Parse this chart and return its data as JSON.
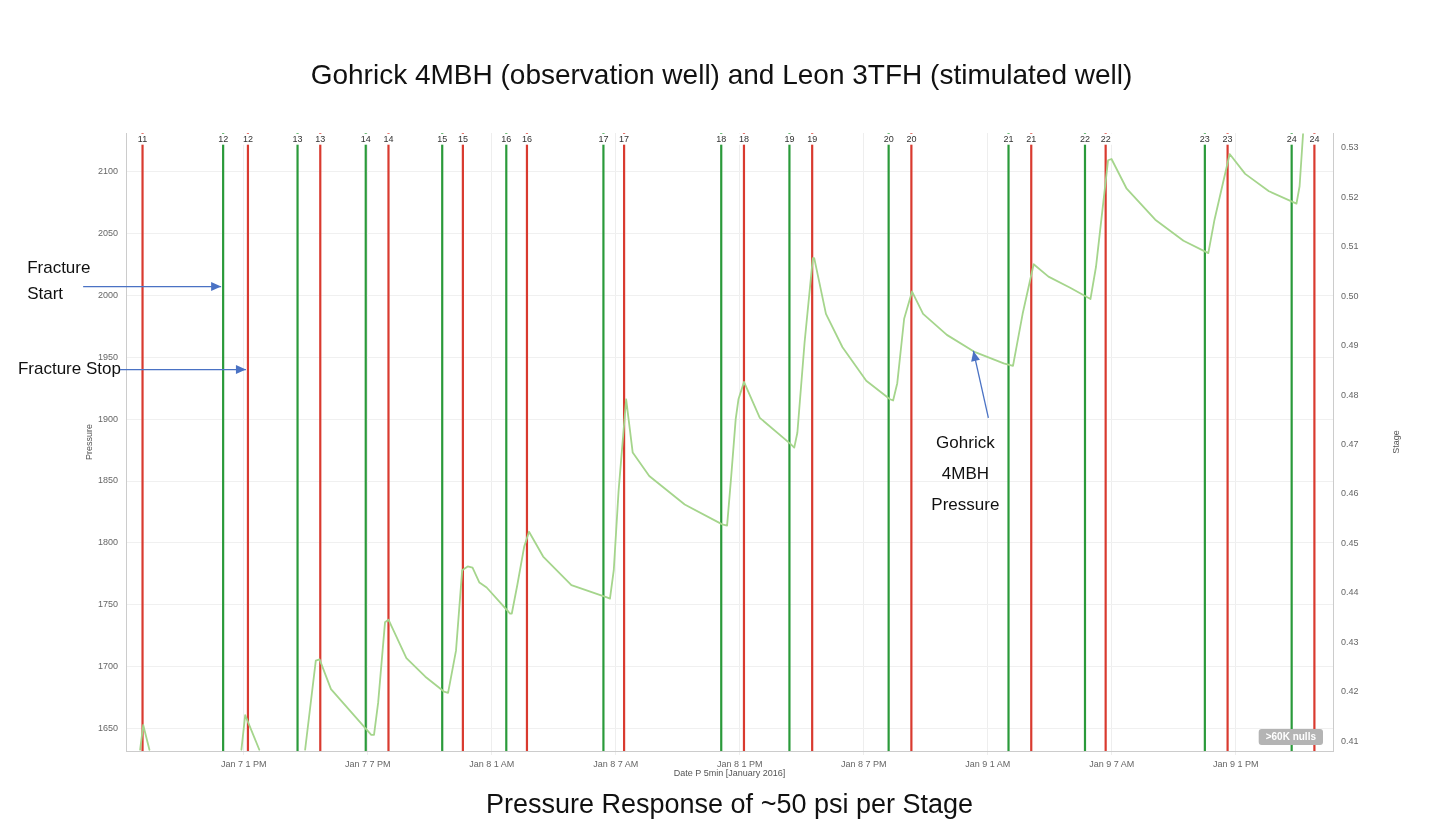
{
  "chart_data": {
    "type": "line",
    "title": "Gohrick 4MBH (observation well) and Leon 3TFH (stimulated well)",
    "xlabel": "Date P 5min [January 2016]",
    "ylabel": "Pressure",
    "y2label": "Stage",
    "xlim": [
      "2016-01-07T07:18",
      "2016-01-09T17:42"
    ],
    "xticks": [
      {
        "value": "2016-01-07T13:00",
        "label": "Jan 7 1 PM"
      },
      {
        "value": "2016-01-07T19:00",
        "label": "Jan 7 7 PM"
      },
      {
        "value": "2016-01-08T01:00",
        "label": "Jan 8 1 AM"
      },
      {
        "value": "2016-01-08T07:00",
        "label": "Jan 8 7 AM"
      },
      {
        "value": "2016-01-08T13:00",
        "label": "Jan 8 1 PM"
      },
      {
        "value": "2016-01-08T19:00",
        "label": "Jan 8 7 PM"
      },
      {
        "value": "2016-01-09T01:00",
        "label": "Jan 9 1 AM"
      },
      {
        "value": "2016-01-09T07:00",
        "label": "Jan 9 7 AM"
      },
      {
        "value": "2016-01-09T13:00",
        "label": "Jan 9 1 PM"
      }
    ],
    "ylim": [
      1632,
      2131
    ],
    "yticks": [
      1650,
      1700,
      1750,
      1800,
      1850,
      1900,
      1950,
      2000,
      2050,
      2100
    ],
    "y2lim": [
      0.408,
      0.533
    ],
    "y2ticks": [
      0.41,
      0.42,
      0.43,
      0.44,
      0.45,
      0.46,
      0.47,
      0.48,
      0.49,
      {
        "value": 0.5,
        "label": "0.50"
      },
      0.51,
      0.52,
      0.53
    ],
    "grid": true,
    "marker": "none",
    "line_style": "solid",
    "series": [
      {
        "color": "#a5d58c",
        "x": [
          "2016-01-07T07:59",
          "2016-01-07T08:08",
          "2016-01-07T08:26",
          "2016-01-07T08:36",
          "2016-01-07T12:53",
          "2016-01-07T13:04",
          "2016-01-07T13:45",
          "2016-01-07T14:30",
          "2016-01-07T15:58",
          "2016-01-07T16:29",
          "2016-01-07T16:40",
          "2016-01-07T17:13",
          "2016-01-07T19:10",
          "2016-01-07T19:18",
          "2016-01-07T19:30",
          "2016-01-07T19:50",
          "2016-01-07T20:00",
          "2016-01-07T20:52",
          "2016-01-07T21:47",
          "2016-01-07T22:41",
          "2016-01-07T22:53",
          "2016-01-07T23:16",
          "2016-01-07T23:34",
          "2016-01-07T23:50",
          "2016-01-08T00:04",
          "2016-01-08T00:24",
          "2016-01-08T00:45",
          "2016-01-08T01:53",
          "2016-01-08T01:58",
          "2016-01-08T02:14",
          "2016-01-08T02:34",
          "2016-01-08T02:48",
          "2016-01-08T03:29",
          "2016-01-08T04:51",
          "2016-01-08T06:34",
          "2016-01-08T06:43",
          "2016-01-08T06:54",
          "2016-01-08T07:08",
          "2016-01-08T07:30",
          "2016-01-08T07:49",
          "2016-01-08T08:37",
          "2016-01-08T10:20",
          "2016-01-08T12:09",
          "2016-01-08T12:23",
          "2016-01-08T12:35",
          "2016-01-08T12:48",
          "2016-01-08T12:56",
          "2016-01-08T13:12",
          "2016-01-08T13:58",
          "2016-01-08T15:27",
          "2016-01-08T15:38",
          "2016-01-08T15:47",
          "2016-01-08T16:08",
          "2016-01-08T16:32",
          "2016-01-08T16:36",
          "2016-01-08T17:10",
          "2016-01-08T17:58",
          "2016-01-08T19:07",
          "2016-01-08T20:16",
          "2016-01-08T20:25",
          "2016-01-08T20:37",
          "2016-01-08T20:57",
          "2016-01-08T21:20",
          "2016-01-08T21:52",
          "2016-01-08T23:01",
          "2016-01-09T00:23",
          "2016-01-09T01:46",
          "2016-01-09T02:13",
          "2016-01-09T02:41",
          "2016-01-09T03:13",
          "2016-01-09T03:56",
          "2016-01-09T04:59",
          "2016-01-09T05:58",
          "2016-01-09T06:14",
          "2016-01-09T06:49",
          "2016-01-09T06:59",
          "2016-01-09T07:43",
          "2016-01-09T09:06",
          "2016-01-09T10:28",
          "2016-01-09T11:40",
          "2016-01-09T11:58",
          "2016-01-09T12:42",
          "2016-01-09T13:27",
          "2016-01-09T14:36",
          "2016-01-09T15:56",
          "2016-01-09T16:05",
          "2016-01-09T16:15"
        ],
        "values": [
          1633,
          1653,
          1633,
          null,
          1633,
          1661,
          1633,
          null,
          1633,
          1705,
          1706,
          1682,
          1645,
          1645,
          1671,
          1736,
          1738,
          1707,
          1692,
          1680,
          1679,
          1713,
          1778,
          1781,
          1780,
          1768,
          1764,
          1743,
          1743,
          1766,
          1797,
          1809,
          1789,
          1766,
          1756,
          1755,
          1778,
          1842,
          1916,
          1873,
          1854,
          1831,
          1815,
          1814,
          1854,
          1900,
          1916,
          1930,
          1901,
          1880,
          1877,
          1889,
          1962,
          2030,
          2030,
          1985,
          1958,
          1931,
          1916,
          1915,
          1929,
          1981,
          2003,
          1985,
          1968,
          1954,
          1945,
          1943,
          1985,
          2025,
          2015,
          2006,
          1997,
          2023,
          2109,
          2110,
          2086,
          2061,
          2044,
          2034,
          2061,
          2114,
          2098,
          2084,
          2074,
          2088,
          2130
        ]
      }
    ],
    "ref_lines": [
      {
        "axis": "x",
        "value": "2016-01-07T08:06",
        "color": "#d93a2f"
      },
      {
        "axis": "x",
        "value": "2016-01-07T12:00",
        "color": "#2a9a3a"
      },
      {
        "axis": "x",
        "value": "2016-01-07T13:12",
        "color": "#d93a2f"
      },
      {
        "axis": "x",
        "value": "2016-01-07T15:36",
        "color": "#2a9a3a"
      },
      {
        "axis": "x",
        "value": "2016-01-07T16:42",
        "color": "#d93a2f"
      },
      {
        "axis": "x",
        "value": "2016-01-07T18:54",
        "color": "#2a9a3a"
      },
      {
        "axis": "x",
        "value": "2016-01-07T20:00",
        "color": "#d93a2f"
      },
      {
        "axis": "x",
        "value": "2016-01-07T22:36",
        "color": "#2a9a3a"
      },
      {
        "axis": "x",
        "value": "2016-01-07T23:36",
        "color": "#d93a2f"
      },
      {
        "axis": "x",
        "value": "2016-01-08T01:42",
        "color": "#2a9a3a"
      },
      {
        "axis": "x",
        "value": "2016-01-08T02:42",
        "color": "#d93a2f"
      },
      {
        "axis": "x",
        "value": "2016-01-08T06:24",
        "color": "#2a9a3a"
      },
      {
        "axis": "x",
        "value": "2016-01-08T07:24",
        "color": "#d93a2f"
      },
      {
        "axis": "x",
        "value": "2016-01-08T12:06",
        "color": "#2a9a3a"
      },
      {
        "axis": "x",
        "value": "2016-01-08T13:12",
        "color": "#d93a2f"
      },
      {
        "axis": "x",
        "value": "2016-01-08T15:24",
        "color": "#2a9a3a"
      },
      {
        "axis": "x",
        "value": "2016-01-08T16:30",
        "color": "#d93a2f"
      },
      {
        "axis": "x",
        "value": "2016-01-08T20:12",
        "color": "#2a9a3a"
      },
      {
        "axis": "x",
        "value": "2016-01-08T21:18",
        "color": "#d93a2f"
      },
      {
        "axis": "x",
        "value": "2016-01-09T02:00",
        "color": "#2a9a3a"
      },
      {
        "axis": "x",
        "value": "2016-01-09T03:06",
        "color": "#d93a2f"
      },
      {
        "axis": "x",
        "value": "2016-01-09T05:42",
        "color": "#2a9a3a"
      },
      {
        "axis": "x",
        "value": "2016-01-09T06:42",
        "color": "#d93a2f"
      },
      {
        "axis": "x",
        "value": "2016-01-09T11:30",
        "color": "#2a9a3a"
      },
      {
        "axis": "x",
        "value": "2016-01-09T12:36",
        "color": "#d93a2f"
      },
      {
        "axis": "x",
        "value": "2016-01-09T15:42",
        "color": "#2a9a3a"
      },
      {
        "axis": "x",
        "value": "2016-01-09T16:48",
        "color": "#d93a2f"
      }
    ],
    "annotations": [
      {
        "text": "Fracture Start",
        "x": "2016-01-07T12:00",
        "y": 2007
      },
      {
        "text": "Fracture Stop",
        "x": "2016-01-07T13:12",
        "y": 1940
      },
      {
        "text": "Gohrick 4MBH Pressure",
        "x": "2016-01-09T00:18",
        "y": 1955
      },
      {
        "text": "11",
        "x": "2016-01-07T08:06",
        "y": 2126
      },
      {
        "text": "12",
        "x": "2016-01-07T12:00",
        "y": 2126
      },
      {
        "text": "12",
        "x": "2016-01-07T13:12",
        "y": 2126
      },
      {
        "text": "13",
        "x": "2016-01-07T15:36",
        "y": 2126
      },
      {
        "text": "13",
        "x": "2016-01-07T16:42",
        "y": 2126
      },
      {
        "text": "14",
        "x": "2016-01-07T18:54",
        "y": 2126
      },
      {
        "text": "14",
        "x": "2016-01-07T20:00",
        "y": 2126
      },
      {
        "text": "15",
        "x": "2016-01-07T22:36",
        "y": 2126
      },
      {
        "text": "15",
        "x": "2016-01-07T23:36",
        "y": 2126
      },
      {
        "text": "16",
        "x": "2016-01-08T01:42",
        "y": 2126
      },
      {
        "text": "16",
        "x": "2016-01-08T02:42",
        "y": 2126
      },
      {
        "text": "17",
        "x": "2016-01-08T06:24",
        "y": 2126
      },
      {
        "text": "17",
        "x": "2016-01-08T07:24",
        "y": 2126
      },
      {
        "text": "18",
        "x": "2016-01-08T12:06",
        "y": 2126
      },
      {
        "text": "18",
        "x": "2016-01-08T13:12",
        "y": 2126
      },
      {
        "text": "19",
        "x": "2016-01-08T15:24",
        "y": 2126
      },
      {
        "text": "19",
        "x": "2016-01-08T16:30",
        "y": 2126
      },
      {
        "text": "20",
        "x": "2016-01-08T20:12",
        "y": 2126
      },
      {
        "text": "20",
        "x": "2016-01-08T21:18",
        "y": 2126
      },
      {
        "text": "21",
        "x": "2016-01-09T02:00",
        "y": 2126
      },
      {
        "text": "21",
        "x": "2016-01-09T03:06",
        "y": 2126
      },
      {
        "text": "22",
        "x": "2016-01-09T05:42",
        "y": 2126
      },
      {
        "text": "22",
        "x": "2016-01-09T06:42",
        "y": 2126
      },
      {
        "text": "23",
        "x": "2016-01-09T11:30",
        "y": 2126
      },
      {
        "text": "23",
        "x": "2016-01-09T12:36",
        "y": 2126
      },
      {
        "text": "24",
        "x": "2016-01-09T15:42",
        "y": 2126
      },
      {
        "text": "24",
        "x": "2016-01-09T16:48",
        "y": 2126
      },
      ">60K nulls",
      "Pressure Response of ~50 psi per Stage"
    ]
  }
}
